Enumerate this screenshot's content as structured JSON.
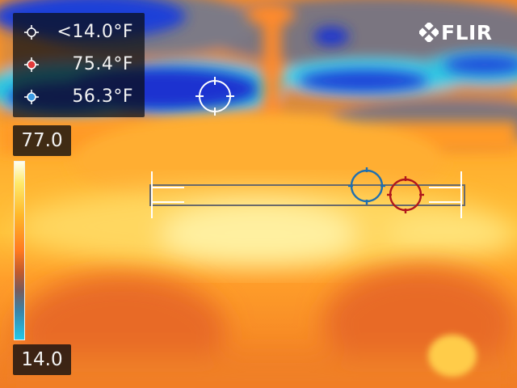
{
  "spots": [
    {
      "name": "cold-spot",
      "label": "<14.0°F",
      "color": "#ffffff"
    },
    {
      "name": "hot-spot",
      "label": "75.4°F",
      "color": "#e23b3b"
    },
    {
      "name": "box-cold-spot",
      "label": "56.3°F",
      "color": "#3b9ae1"
    }
  ],
  "brand": {
    "logo_text": "FLIR"
  },
  "scale": {
    "max": "77.0",
    "min": "14.0",
    "palette": "iron"
  },
  "colors": {
    "hot_marker": "#b0161c",
    "cold_marker": "#1f6fb0",
    "crosshair": "#ffffff"
  }
}
